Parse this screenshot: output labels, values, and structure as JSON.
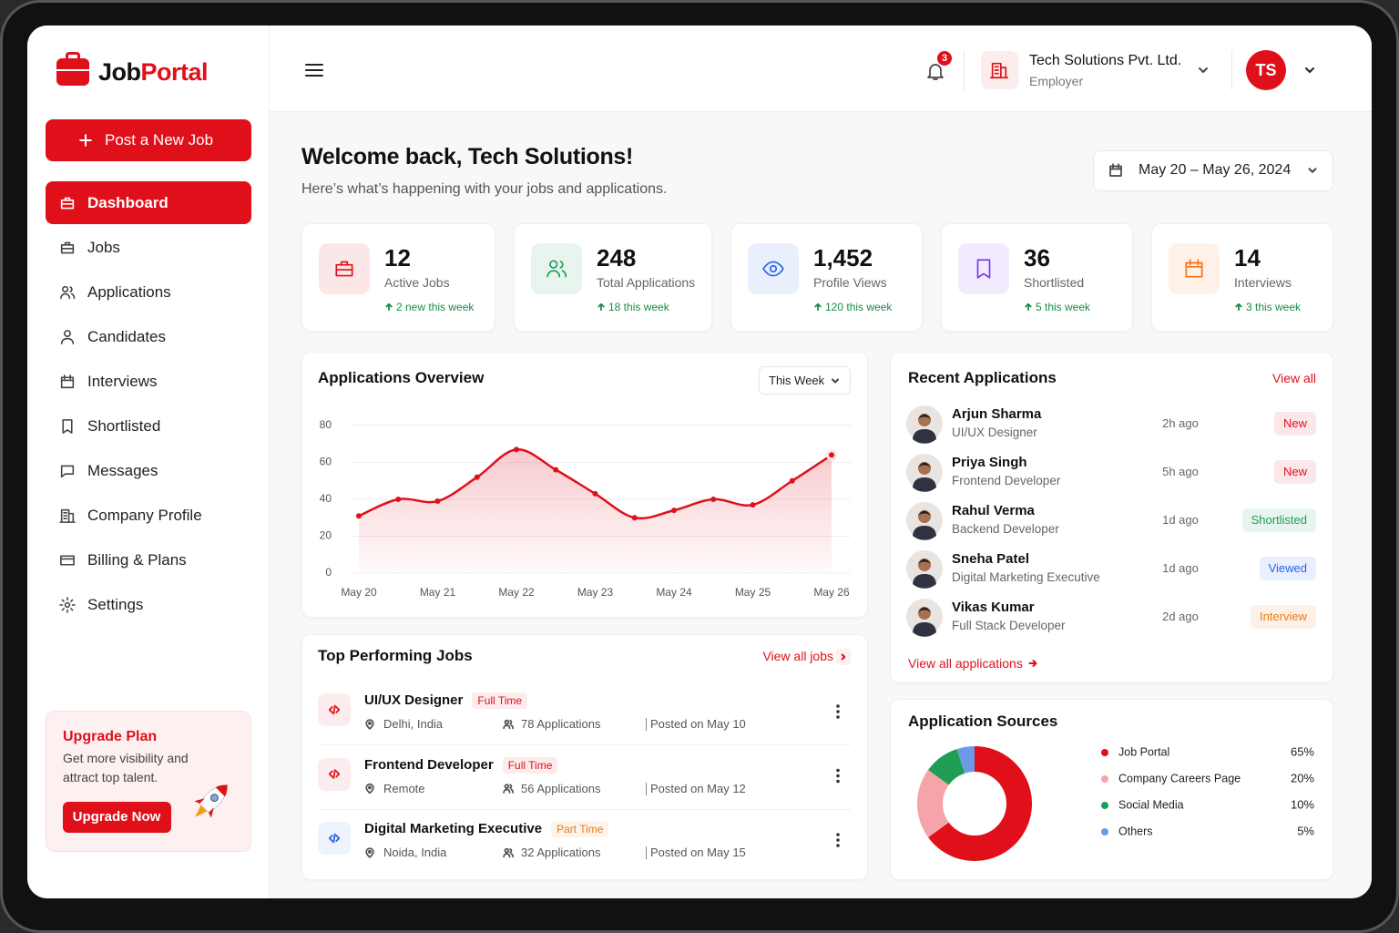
{
  "brand": {
    "first": "Job",
    "second": "Portal"
  },
  "sidebar": {
    "post_job": "Post a New Job",
    "nav": [
      "Dashboard",
      "Jobs",
      "Applications",
      "Candidates",
      "Interviews",
      "Shortlisted",
      "Messages",
      "Company Profile",
      "Billing & Plans",
      "Settings"
    ],
    "upgrade": {
      "title": "Upgrade Plan",
      "text": "Get more visibility and attract top talent.",
      "button": "Upgrade Now"
    }
  },
  "header": {
    "notifications": 3,
    "company": "Tech Solutions Pvt. Ltd.",
    "role": "Employer",
    "initials": "TS"
  },
  "welcome": {
    "title": "Welcome back, Tech Solutions!",
    "subtitle": "Here’s what’s happening with your jobs and applications.",
    "date_range": "May 20 – May 26, 2024"
  },
  "stats": [
    {
      "value": 12,
      "label": "Active Jobs",
      "change": "2 new this week",
      "color": "#e0101b"
    },
    {
      "value": 248,
      "label": "Total Applications",
      "change": "18 this week",
      "color": "#1f9d55"
    },
    {
      "value": {
        "value": 1452,
        "label": "1,452"
      },
      "label": "Profile Views",
      "change": "120 this week",
      "color": "#2563eb"
    },
    {
      "value": 36,
      "label": "Shortlisted",
      "change": "5 this week",
      "color": "#7c3aed"
    },
    {
      "value": 14,
      "label": "Interviews",
      "change": "3 this week",
      "color": "#f97316"
    }
  ],
  "chart_data": [
    {
      "type": "line",
      "title": "Applications Overview",
      "filter": "This Week",
      "categories": [
        "May 20",
        null,
        "May 21",
        null,
        "May 22",
        null,
        "May 23",
        null,
        "May 24",
        null,
        "May 25",
        null,
        "May 26"
      ],
      "values": [
        31,
        40,
        39,
        52,
        67,
        56,
        43,
        30,
        34,
        40,
        37,
        50,
        64
      ],
      "color": "#e0101b",
      "ylim": [
        0,
        80
      ],
      "yticks": [
        0,
        20,
        40,
        60,
        80
      ],
      "grid": true
    },
    {
      "type": "pie",
      "title": "Application Sources",
      "donut": true,
      "categories": [
        "Job Portal",
        "Company Careers Page",
        "Social Media",
        "Others"
      ],
      "values": [
        65,
        20,
        10,
        5
      ],
      "value_labels": [
        "65%",
        "20%",
        "10%",
        "5%"
      ],
      "colors": [
        "#e0101b",
        "#f6a3aa",
        "#1f9d55",
        "#6b9be8"
      ]
    }
  ],
  "recent_applications": {
    "title": "Recent Applications",
    "view_all": "View all",
    "footer": "View all applications",
    "items": [
      {
        "name": "Arjun Sharma",
        "role": "UI/UX Designer",
        "time": "2h ago",
        "status": "New",
        "status_color": "#e0101b"
      },
      {
        "name": "Priya Singh",
        "role": "Frontend Developer",
        "time": "5h ago",
        "status": "New",
        "status_color": "#e0101b"
      },
      {
        "name": "Rahul Verma",
        "role": "Backend Developer",
        "time": "1d ago",
        "status": "Shortlisted",
        "status_color": "#1f9d55"
      },
      {
        "name": "Sneha Patel",
        "role": "Digital Marketing Executive",
        "time": "1d ago",
        "status": "Viewed",
        "status_color": "#2563eb"
      },
      {
        "name": "Vikas Kumar",
        "role": "Full Stack Developer",
        "time": "2d ago",
        "status": "Interview",
        "status_color": "#ea7a12"
      }
    ]
  },
  "top_jobs": {
    "title": "Top Performing Jobs",
    "view_all": "View all jobs",
    "items": [
      {
        "title": "UI/UX Designer",
        "type": "Full Time",
        "type_color": "#e0101b",
        "icon_color": "#e0101b",
        "location": "Delhi, India",
        "applications": "78 Applications",
        "posted": "Posted on May 10"
      },
      {
        "title": "Frontend Developer",
        "type": "Full Time",
        "type_color": "#e0101b",
        "icon_color": "#e0101b",
        "location": "Remote",
        "applications": "56 Applications",
        "posted": "Posted on May 12"
      },
      {
        "title": "Digital Marketing Executive",
        "type": "Part Time",
        "type_color": "#ea7a12",
        "icon_color": "#2563eb",
        "location": "Noida, India",
        "applications": "32 Applications",
        "posted": "Posted on May 15"
      }
    ]
  }
}
